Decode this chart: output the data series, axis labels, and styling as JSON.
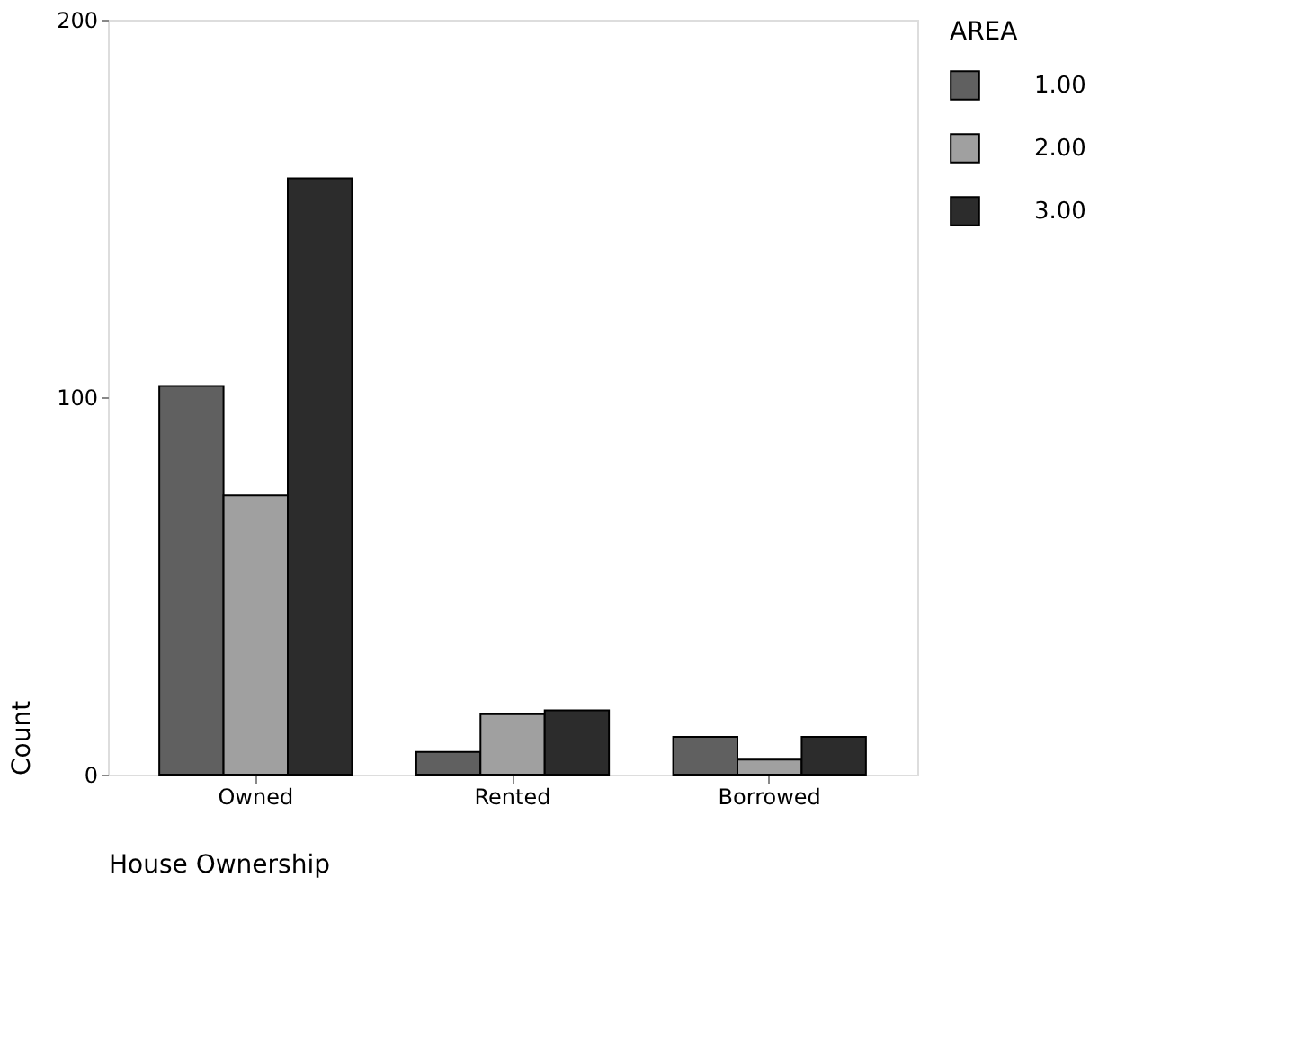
{
  "chart_data": {
    "type": "bar",
    "xlabel": "House Ownership",
    "ylabel": "Count",
    "legend_title": "AREA",
    "categories": [
      "Owned",
      "Rented",
      "Borrowed"
    ],
    "series": [
      {
        "name": "1.00",
        "color": "#606060",
        "values": [
          103,
          6,
          10
        ]
      },
      {
        "name": "2.00",
        "color": "#a0a0a0",
        "values": [
          74,
          16,
          4
        ]
      },
      {
        "name": "3.00",
        "color": "#2c2c2c",
        "values": [
          158,
          17,
          10
        ]
      }
    ],
    "ylim": [
      0,
      200
    ],
    "yticks": [
      0,
      100,
      200
    ],
    "grid": false,
    "legend": "right"
  }
}
